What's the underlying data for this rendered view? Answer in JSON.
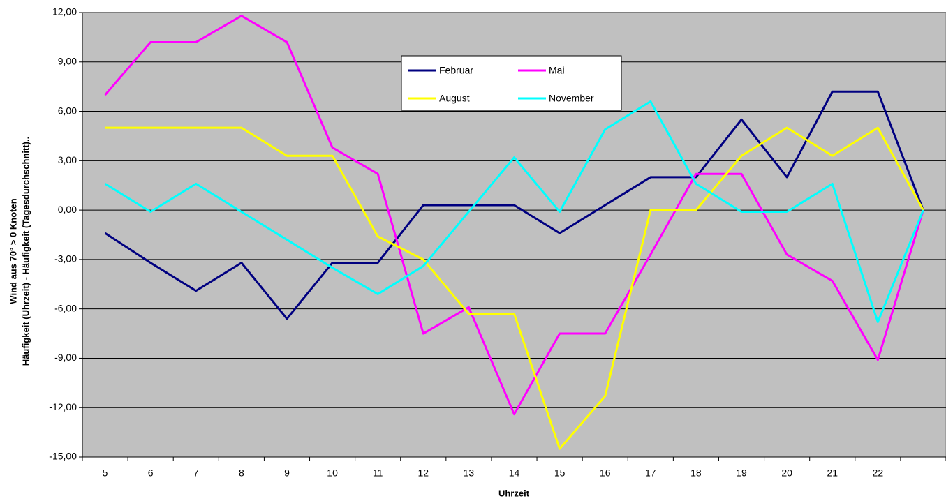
{
  "chart_data": {
    "type": "line",
    "ylabel": [
      "Wind aus 70° > 0 Knoten",
      "Häufigkeit (Uhrzeit) - Häufigkeit (Tagesdurchschnitt).."
    ],
    "xlabel": "Uhrzeit",
    "categories": [
      "5",
      "6",
      "7",
      "8",
      "9",
      "10",
      "11",
      "12",
      "13",
      "14",
      "15",
      "16",
      "17",
      "18",
      "19",
      "20",
      "21",
      "22",
      null
    ],
    "series": [
      {
        "name": "Februar",
        "color": "#000080",
        "values": [
          -1.4,
          -3.2,
          -4.9,
          -3.2,
          -6.6,
          -3.2,
          -3.2,
          0.3,
          0.3,
          0.3,
          -1.4,
          0.3,
          2.0,
          2.0,
          5.5,
          2.0,
          7.2,
          7.2,
          0
        ]
      },
      {
        "name": "Mai",
        "color": "#ff00ff",
        "values": [
          7.0,
          10.2,
          10.2,
          11.8,
          10.2,
          3.8,
          2.2,
          -7.5,
          -5.9,
          -12.4,
          -7.5,
          -7.5,
          -2.7,
          2.2,
          2.2,
          -2.7,
          -4.3,
          -9.1,
          0
        ]
      },
      {
        "name": "August",
        "color": "#ffff00",
        "values": [
          5.0,
          5.0,
          5.0,
          5.0,
          3.3,
          3.3,
          -1.6,
          -3.0,
          -6.3,
          -6.3,
          -14.5,
          -11.3,
          0.0,
          0.0,
          3.3,
          5.0,
          3.3,
          5.0,
          0
        ]
      },
      {
        "name": "November",
        "color": "#00ffff",
        "values": [
          1.6,
          -0.1,
          1.6,
          -0.1,
          -1.8,
          -3.5,
          -5.1,
          -3.4,
          -0.1,
          3.2,
          -0.1,
          4.9,
          6.6,
          1.6,
          -0.1,
          -0.1,
          1.6,
          -6.8,
          0
        ]
      }
    ],
    "ylim": [
      -15,
      12
    ],
    "yticks": [
      {
        "value": -15,
        "label": "-15,00"
      },
      {
        "value": -12,
        "label": "-12,00"
      },
      {
        "value": -9,
        "label": "-9,00"
      },
      {
        "value": -6,
        "label": "-6,00"
      },
      {
        "value": -3,
        "label": "-3,00"
      },
      {
        "value": 0,
        "label": "0,00"
      },
      {
        "value": 3,
        "label": "3,00"
      },
      {
        "value": 6,
        "label": "6,00"
      },
      {
        "value": 9,
        "label": "9,00"
      },
      {
        "value": 12,
        "label": "12,00"
      }
    ],
    "grid": true,
    "background": "#c0c0c0"
  }
}
